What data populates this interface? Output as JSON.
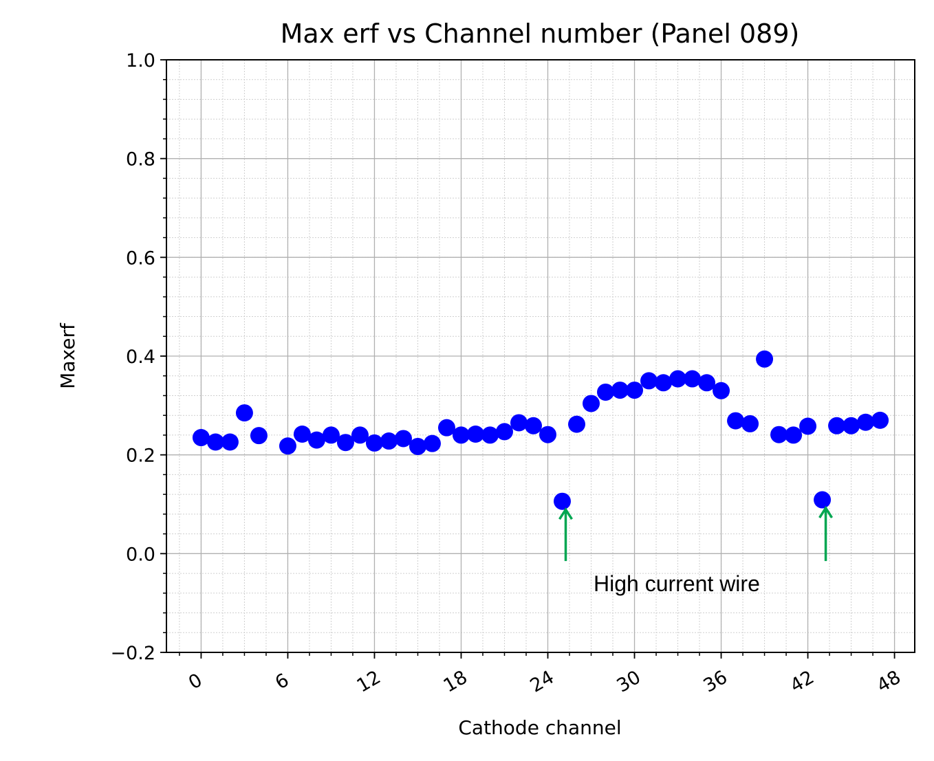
{
  "chart_data": {
    "type": "scatter",
    "title": "Max erf vs Channel number (Panel 089)",
    "xlabel": "Cathode channel",
    "ylabel": "Maxerf",
    "xlim": [
      -2.4,
      49.4
    ],
    "ylim": [
      -0.2,
      1.0
    ],
    "xticks": [
      0,
      6,
      12,
      18,
      24,
      30,
      36,
      42,
      48
    ],
    "xtick_labels": [
      "0",
      "6",
      "12",
      "18",
      "24",
      "30",
      "36",
      "42",
      "48"
    ],
    "yticks": [
      -0.2,
      0.0,
      0.2,
      0.4,
      0.6,
      0.8,
      1.0
    ],
    "ytick_labels": [
      "−0.2",
      "0.0",
      "0.2",
      "0.4",
      "0.6",
      "0.8",
      "1.0"
    ],
    "grid": true,
    "minor_grid": true,
    "marker_color": "#0000ff",
    "series": [
      {
        "x": [
          0,
          1,
          2,
          3,
          4,
          6,
          7,
          8,
          9,
          10,
          11,
          12,
          13,
          14,
          15,
          16,
          17,
          18,
          19,
          20,
          21,
          22,
          23,
          24,
          25,
          26,
          27,
          28,
          29,
          30,
          31,
          32,
          33,
          34,
          35,
          36,
          37,
          38,
          39,
          40,
          41,
          42,
          43,
          44,
          45,
          46,
          47
        ],
        "values": [
          0.235,
          0.226,
          0.226,
          0.285,
          0.239,
          0.218,
          0.242,
          0.23,
          0.24,
          0.225,
          0.24,
          0.224,
          0.228,
          0.233,
          0.217,
          0.223,
          0.255,
          0.24,
          0.242,
          0.24,
          0.247,
          0.265,
          0.259,
          0.241,
          0.106,
          0.262,
          0.304,
          0.327,
          0.331,
          0.331,
          0.35,
          0.346,
          0.354,
          0.354,
          0.346,
          0.33,
          0.269,
          0.263,
          0.394,
          0.241,
          0.24,
          0.258,
          0.109,
          0.259,
          0.259,
          0.266,
          0.27
        ]
      }
    ],
    "annotations": [
      {
        "text": "High current wire",
        "arrow_color": "#00a651",
        "arrows_point_to": [
          {
            "x": 25,
            "y": 0.106
          },
          {
            "x": 43,
            "y": 0.109
          }
        ]
      }
    ]
  }
}
